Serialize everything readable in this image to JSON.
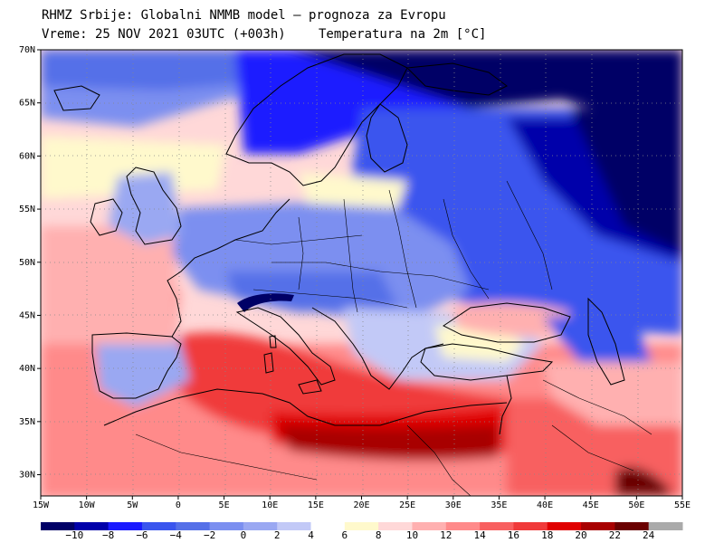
{
  "header": {
    "line1": "RHMZ Srbije: Globalni NMMB model — prognoza za Evropu",
    "line2": "Vreme: 25 NOV 2021 03UTC (+003h)",
    "line3": "Temperatura na 2m [°C]"
  },
  "axes": {
    "lon_labels": [
      "15W",
      "10W",
      "5W",
      "0",
      "5E",
      "10E",
      "15E",
      "20E",
      "25E",
      "30E",
      "35E",
      "40E",
      "45E",
      "50E",
      "55E"
    ],
    "lat_labels": [
      "70N",
      "65N",
      "60N",
      "55N",
      "50N",
      "45N",
      "40N",
      "35N",
      "30N"
    ],
    "lon_range": [
      -15,
      55
    ],
    "lat_range": [
      28,
      70
    ]
  },
  "colorbar": {
    "labels": [
      "−10",
      "−8",
      "−6",
      "−4",
      "−2",
      "0",
      "2",
      "4",
      "6",
      "8",
      "10",
      "12",
      "14",
      "16",
      "18",
      "20",
      "22",
      "24"
    ],
    "colors": [
      "#000066",
      "#0000aa",
      "#1a1aff",
      "#3a55ee",
      "#5570e8",
      "#7b8ff0",
      "#9aa8f2",
      "#c2c9f7",
      "#ffffff",
      "#fff9cc",
      "#ffd8d8",
      "#ffb0b0",
      "#ff8a8a",
      "#f86060",
      "#f03a3a",
      "#e00000",
      "#a80000",
      "#6a0000",
      "#aaaaaa"
    ]
  }
}
